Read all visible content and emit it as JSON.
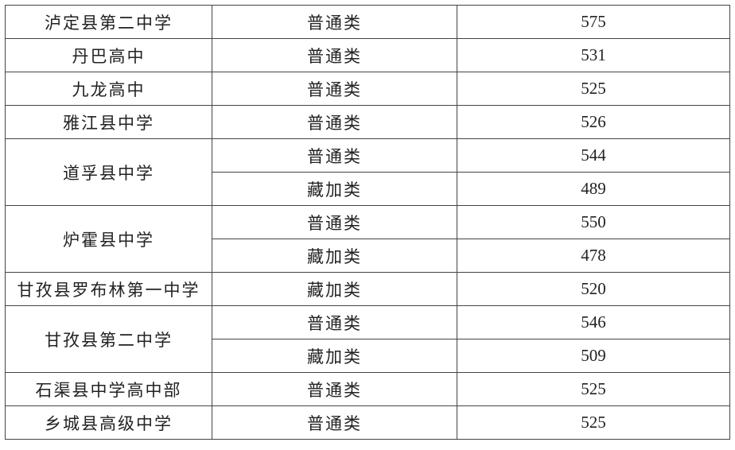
{
  "schools": [
    {
      "name": "泸定县第二中学",
      "entries": [
        {
          "type": "普通类",
          "score": "575"
        }
      ]
    },
    {
      "name": "丹巴高中",
      "entries": [
        {
          "type": "普通类",
          "score": "531"
        }
      ]
    },
    {
      "name": "九龙高中",
      "entries": [
        {
          "type": "普通类",
          "score": "525"
        }
      ]
    },
    {
      "name": "雅江县中学",
      "entries": [
        {
          "type": "普通类",
          "score": "526"
        }
      ]
    },
    {
      "name": "道孚县中学",
      "entries": [
        {
          "type": "普通类",
          "score": "544"
        },
        {
          "type": "藏加类",
          "score": "489"
        }
      ]
    },
    {
      "name": "炉霍县中学",
      "entries": [
        {
          "type": "普通类",
          "score": "550"
        },
        {
          "type": "藏加类",
          "score": "478"
        }
      ]
    },
    {
      "name": "甘孜县罗布林第一中学",
      "entries": [
        {
          "type": "藏加类",
          "score": "520"
        }
      ]
    },
    {
      "name": "甘孜县第二中学",
      "entries": [
        {
          "type": "普通类",
          "score": "546"
        },
        {
          "type": "藏加类",
          "score": "509"
        }
      ]
    },
    {
      "name": "石渠县中学高中部",
      "entries": [
        {
          "type": "普通类",
          "score": "525"
        }
      ]
    },
    {
      "name": "乡城县高级中学",
      "entries": [
        {
          "type": "普通类",
          "score": "525"
        }
      ]
    }
  ]
}
